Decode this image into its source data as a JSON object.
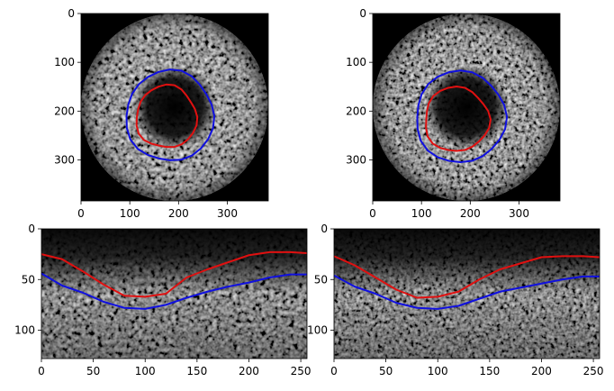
{
  "panels": [
    {
      "id": "ivus-polar-left",
      "kind": "polar",
      "x_ticks": [
        0,
        100,
        200,
        300
      ],
      "y_ticks": [
        0,
        100,
        200,
        300
      ],
      "xlim": [
        0,
        384
      ],
      "ylim": [
        384,
        0
      ],
      "outer_contour": {
        "color": "#1010e0",
        "cx": 182,
        "cy": 210,
        "rx": 90,
        "ry": 93
      },
      "inner_contour": {
        "color": "#e01010",
        "cx": 175,
        "cy": 212,
        "rx": 62,
        "ry": 64
      }
    },
    {
      "id": "ivus-polar-right",
      "kind": "polar",
      "x_ticks": [
        0,
        100,
        200,
        300
      ],
      "y_ticks": [
        0,
        100,
        200,
        300
      ],
      "xlim": [
        0,
        384
      ],
      "ylim": [
        384,
        0
      ],
      "outer_contour": {
        "color": "#1010e0",
        "cx": 180,
        "cy": 212,
        "rx": 92,
        "ry": 94
      },
      "inner_contour": {
        "color": "#e01010",
        "cx": 172,
        "cy": 217,
        "rx": 66,
        "ry": 66
      }
    },
    {
      "id": "ivus-unrolled-left",
      "kind": "unrolled",
      "x_ticks": [
        0,
        50,
        100,
        150,
        200,
        250
      ],
      "y_ticks": [
        0,
        50,
        100
      ],
      "xlim": [
        0,
        256
      ],
      "ylim": [
        128,
        0
      ],
      "red_curve": {
        "color": "#e01010",
        "x": [
          0,
          20,
          40,
          60,
          80,
          100,
          120,
          140,
          160,
          180,
          200,
          220,
          240,
          256
        ],
        "y": [
          25,
          30,
          42,
          55,
          66,
          67,
          64,
          48,
          40,
          33,
          26,
          23,
          23,
          24
        ]
      },
      "blue_curve": {
        "color": "#1010e0",
        "x": [
          0,
          20,
          40,
          60,
          80,
          100,
          120,
          140,
          160,
          180,
          200,
          220,
          240,
          256
        ],
        "y": [
          44,
          56,
          63,
          72,
          78,
          79,
          75,
          68,
          62,
          57,
          53,
          48,
          45,
          45
        ]
      }
    },
    {
      "id": "ivus-unrolled-right",
      "kind": "unrolled",
      "x_ticks": [
        0,
        50,
        100,
        150,
        200,
        250
      ],
      "y_ticks": [
        0,
        50,
        100
      ],
      "xlim": [
        0,
        256
      ],
      "ylim": [
        128,
        0
      ],
      "red_curve": {
        "color": "#e01010",
        "x": [
          0,
          20,
          40,
          60,
          80,
          100,
          120,
          140,
          160,
          180,
          200,
          220,
          240,
          256
        ],
        "y": [
          27,
          36,
          48,
          60,
          68,
          67,
          62,
          50,
          40,
          34,
          28,
          27,
          27,
          28
        ]
      },
      "blue_curve": {
        "color": "#1010e0",
        "x": [
          0,
          20,
          40,
          60,
          80,
          100,
          120,
          140,
          160,
          180,
          200,
          220,
          240,
          256
        ],
        "y": [
          46,
          57,
          64,
          73,
          78,
          79,
          76,
          69,
          62,
          58,
          54,
          50,
          47,
          47
        ]
      }
    }
  ]
}
